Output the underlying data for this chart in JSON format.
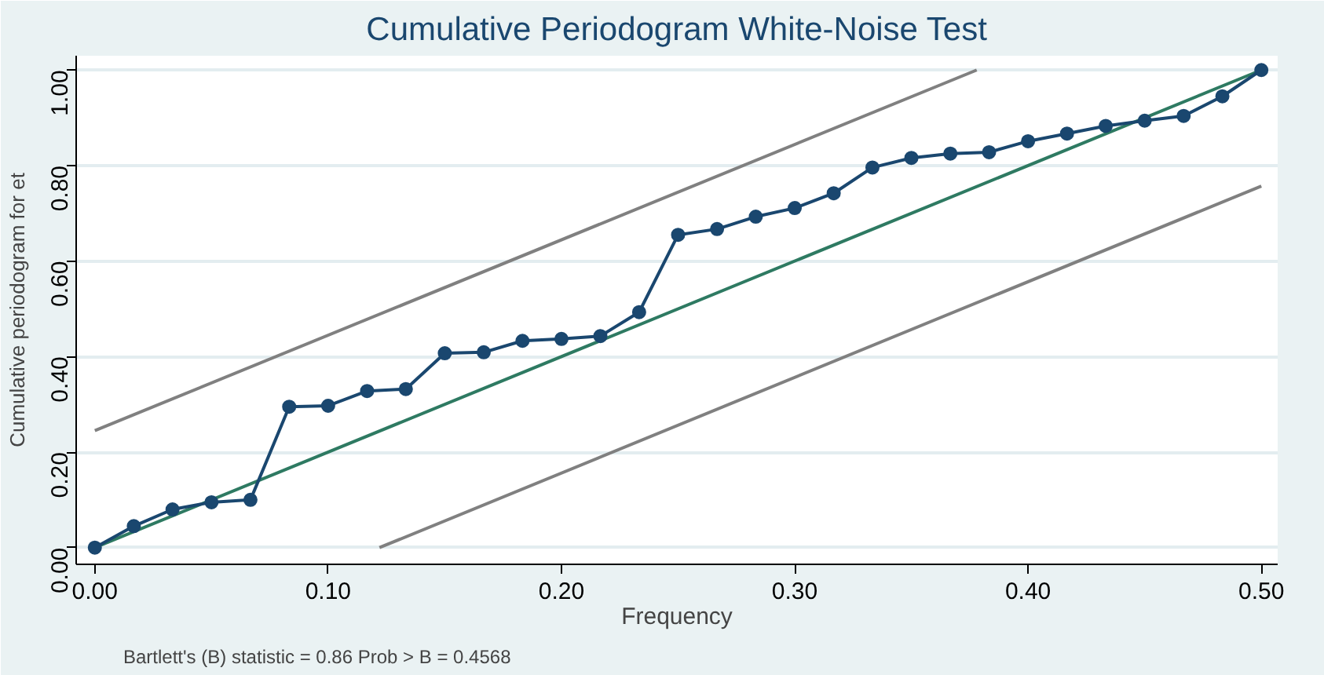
{
  "chart_data": {
    "type": "line",
    "title": "Cumulative Periodogram White-Noise Test",
    "xlabel": "Frequency",
    "ylabel": "Cumulative periodogram for et",
    "annotations": [
      "Bartlett's (B) statistic =     0.86   Prob > B = 0.4568"
    ],
    "xlim": [
      -0.008,
      0.507
    ],
    "ylim": [
      -0.035,
      1.03
    ],
    "xticks": [
      {
        "value": 0,
        "label": "0.00"
      },
      {
        "value": 0.1,
        "label": "0.10"
      },
      {
        "value": 0.2,
        "label": "0.20"
      },
      {
        "value": 0.3,
        "label": "0.30"
      },
      {
        "value": 0.4,
        "label": "0.40"
      },
      {
        "value": 0.5,
        "label": "0.50"
      }
    ],
    "yticks": [
      {
        "value": 0,
        "label": "0.00"
      },
      {
        "value": 0.2,
        "label": "0.20"
      },
      {
        "value": 0.4,
        "label": "0.40"
      },
      {
        "value": 0.6,
        "label": "0.60"
      },
      {
        "value": 0.8,
        "label": "0.80"
      },
      {
        "value": 1,
        "label": "1.00"
      }
    ],
    "grid": "y",
    "line_style": "solid",
    "series": [
      {
        "color": "#808080",
        "marker": "none",
        "x": [
          0,
          0.378
        ],
        "values": [
          0.245,
          1.0
        ]
      },
      {
        "color": "#808080",
        "marker": "none",
        "x": [
          0.122,
          0.5
        ],
        "values": [
          0,
          0.757
        ]
      },
      {
        "color": "#2e7a62",
        "marker": "none",
        "x": [
          0,
          0.5
        ],
        "values": [
          0,
          1
        ]
      },
      {
        "color": "#1a476f",
        "marker": "circle",
        "x": [
          0,
          0.0167,
          0.0333,
          0.05,
          0.0667,
          0.0833,
          0.1,
          0.1167,
          0.1333,
          0.15,
          0.1667,
          0.1833,
          0.2,
          0.2167,
          0.2333,
          0.25,
          0.2667,
          0.2833,
          0.3,
          0.3167,
          0.3333,
          0.35,
          0.3667,
          0.3833,
          0.4,
          0.4167,
          0.4333,
          0.45,
          0.4667,
          0.4833,
          0.5
        ],
        "values": [
          0,
          0.045,
          0.08,
          0.095,
          0.1,
          0.295,
          0.297,
          0.328,
          0.332,
          0.407,
          0.409,
          0.433,
          0.437,
          0.443,
          0.493,
          0.655,
          0.667,
          0.693,
          0.711,
          0.742,
          0.796,
          0.816,
          0.825,
          0.828,
          0.851,
          0.867,
          0.883,
          0.894,
          0.904,
          0.945,
          1.0
        ]
      }
    ]
  }
}
